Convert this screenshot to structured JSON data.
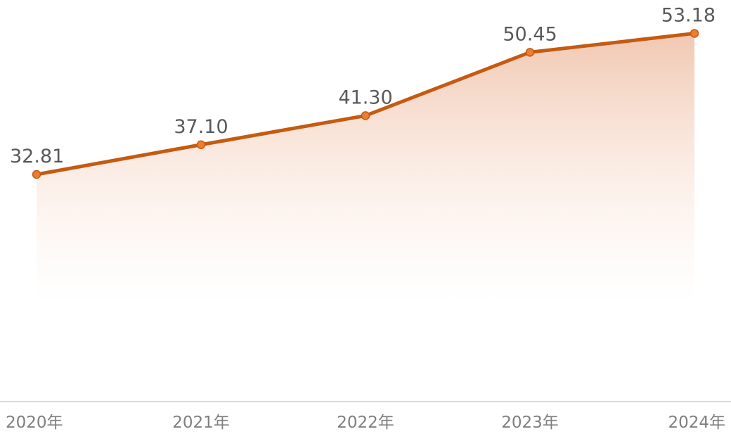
{
  "chart_data": {
    "type": "line",
    "categories": [
      "2020年",
      "2021年",
      "2022年",
      "2023年",
      "2024年"
    ],
    "values": [
      32.81,
      37.1,
      41.3,
      50.45,
      53.18
    ],
    "value_labels": [
      "32.81",
      "37.10",
      "41.30",
      "50.45",
      "53.18"
    ],
    "color": "#c55a11",
    "ylim": [
      0,
      58
    ]
  }
}
